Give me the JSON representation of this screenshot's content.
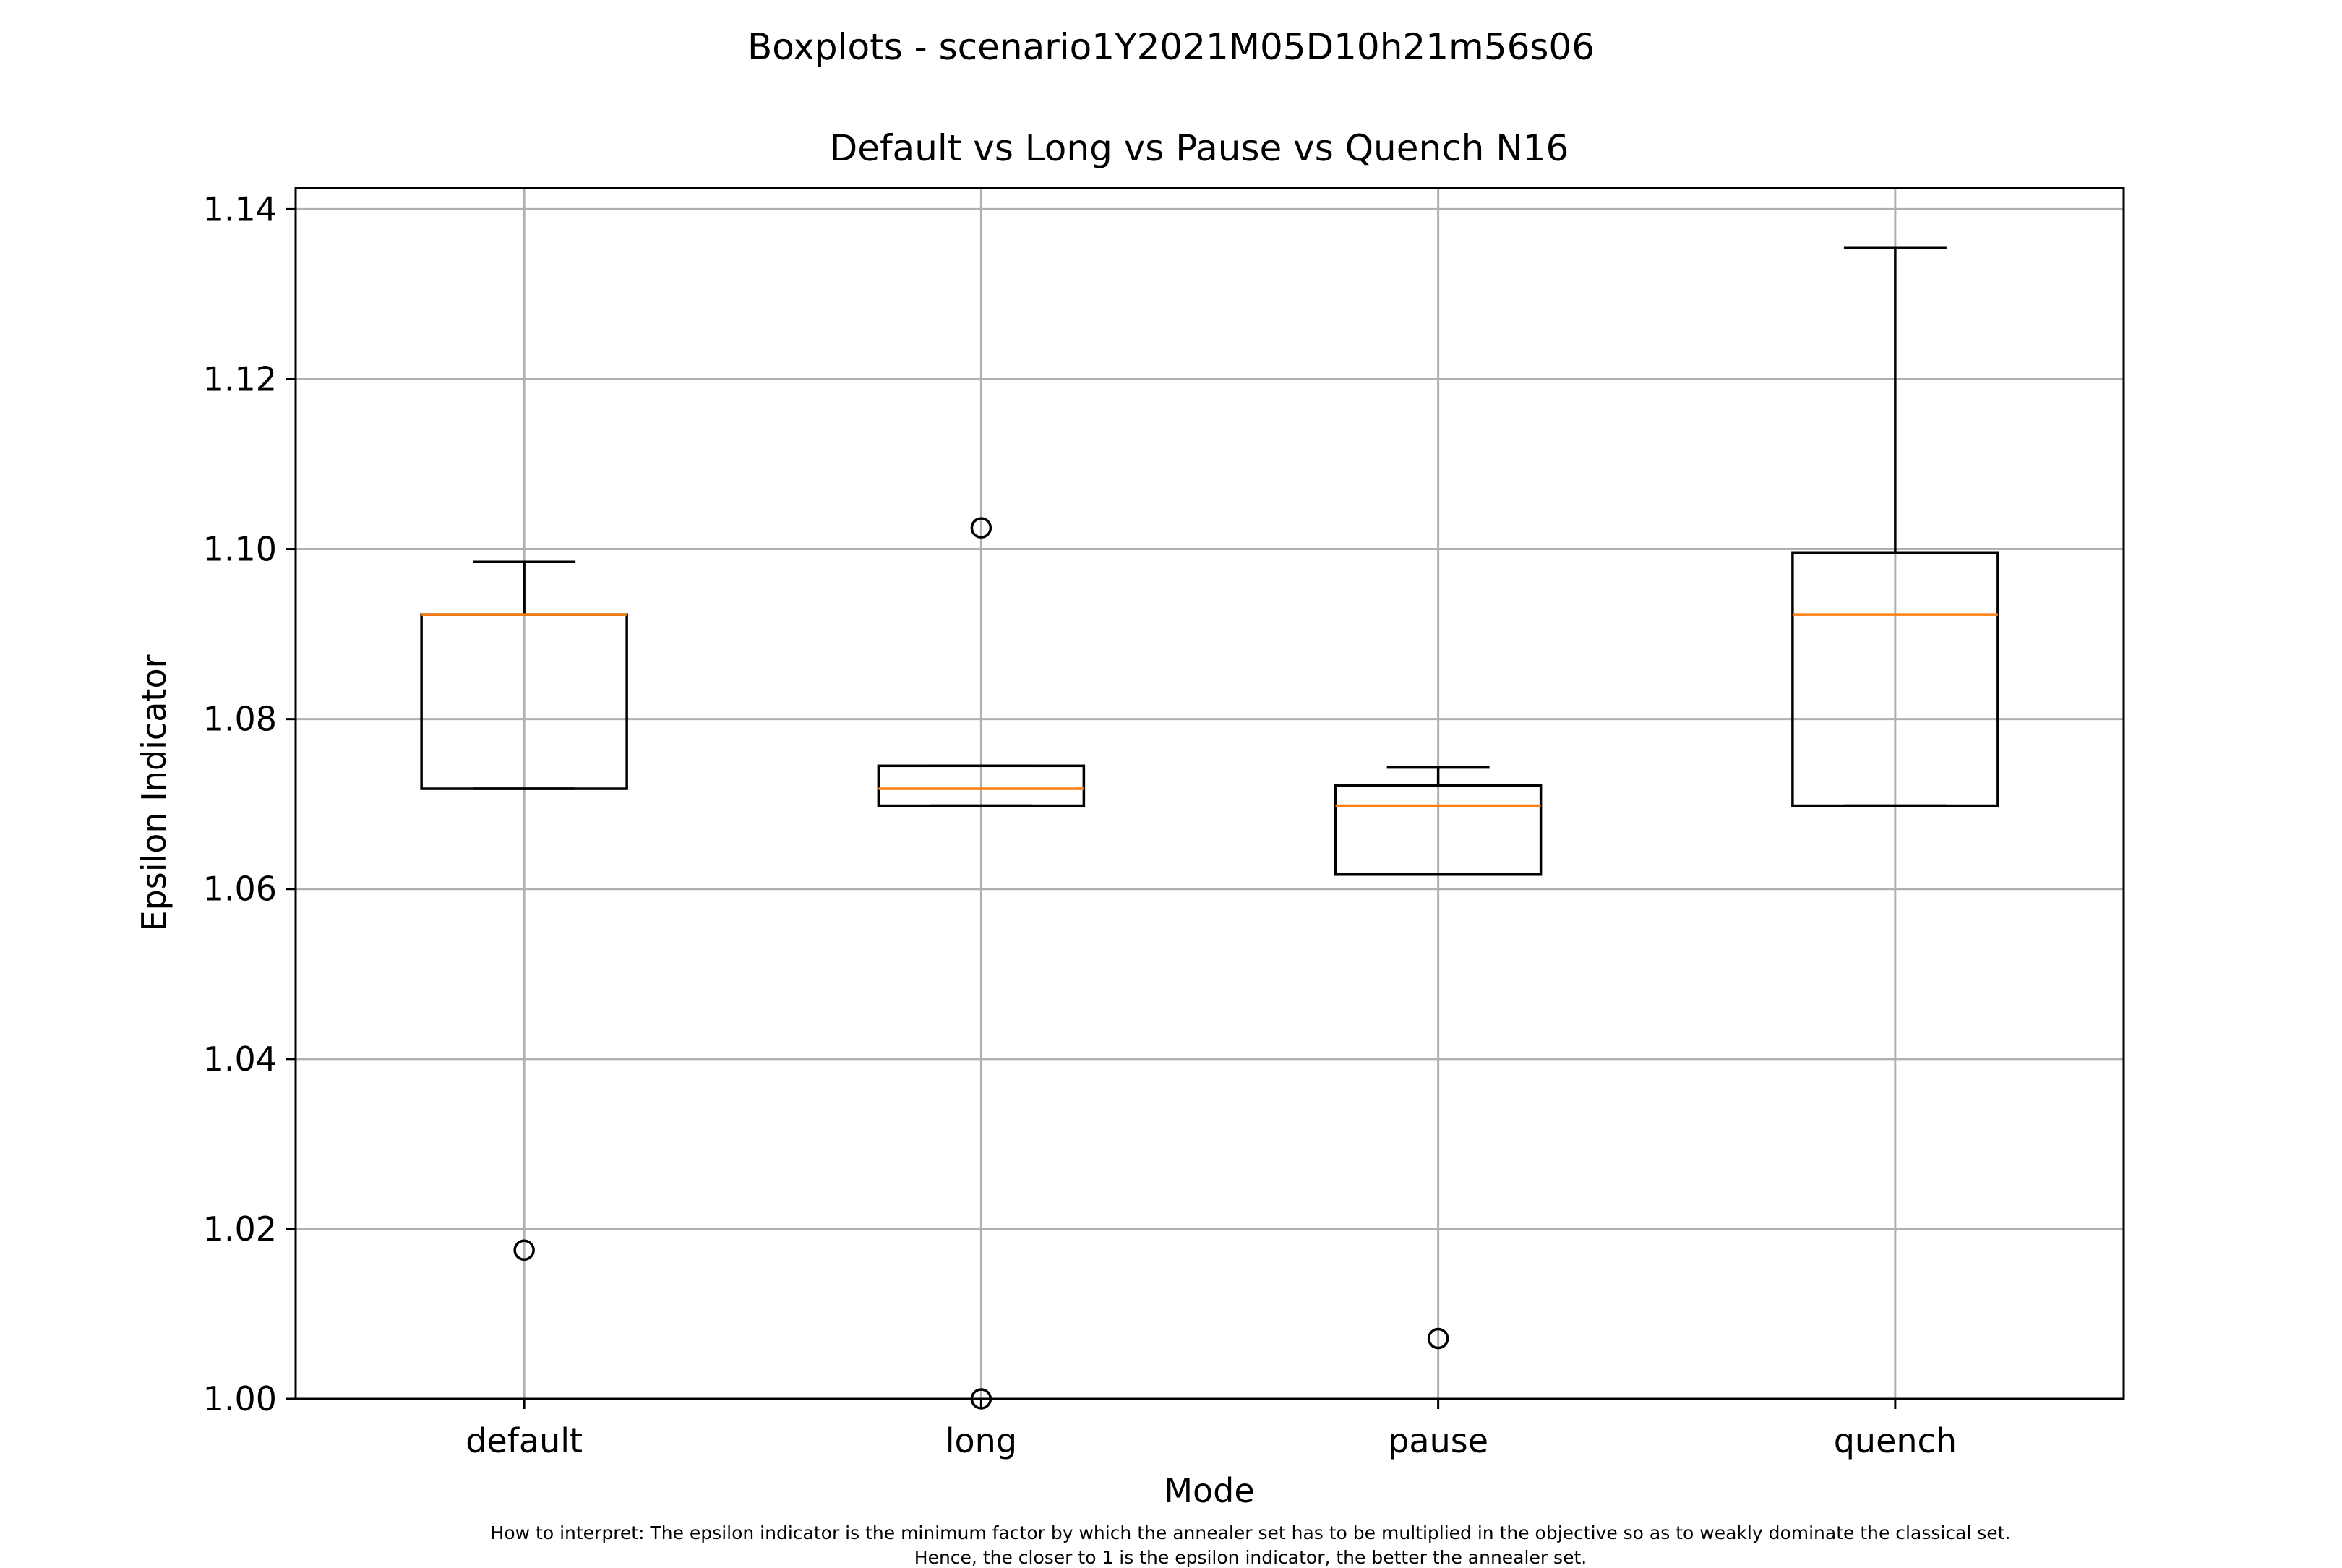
{
  "chart_data": {
    "type": "boxplot",
    "suptitle": "Boxplots - scenario1Y2021M05D10h21m56s06",
    "title": "Default vs Long vs Pause vs Quench N16",
    "xlabel": "Mode",
    "ylabel": "Epsilon Indicator",
    "ylim": [
      1.0,
      1.1425
    ],
    "yticks": [
      "1.00",
      "1.02",
      "1.04",
      "1.06",
      "1.08",
      "1.10",
      "1.12",
      "1.14"
    ],
    "grid": true,
    "categories": [
      "default",
      "long",
      "pause",
      "quench"
    ],
    "boxes": [
      {
        "category": "default",
        "whisker_low": 1.0718,
        "q1": 1.0718,
        "median": 1.0923,
        "q3": 1.0923,
        "whisker_high": 1.0985,
        "outliers": [
          1.0175
        ]
      },
      {
        "category": "long",
        "whisker_low": 1.0698,
        "q1": 1.0698,
        "median": 1.0718,
        "q3": 1.0745,
        "whisker_high": 1.0745,
        "outliers": [
          1.1025,
          1.0
        ]
      },
      {
        "category": "pause",
        "whisker_low": 1.0617,
        "q1": 1.0617,
        "median": 1.0698,
        "q3": 1.0722,
        "whisker_high": 1.0743,
        "outliers": [
          1.0071
        ]
      },
      {
        "category": "quench",
        "whisker_low": 1.0698,
        "q1": 1.0698,
        "median": 1.0923,
        "q3": 1.0996,
        "whisker_high": 1.1355,
        "outliers": []
      }
    ],
    "colors": {
      "box": "#000000",
      "median": "#ff7f0e",
      "grid": "#b0b0b0"
    }
  },
  "footnote": {
    "line1": "How to interpret: The epsilon indicator is the minimum factor by which the annealer set has to be multiplied in the objective so as to weakly dominate the classical set.",
    "line2": "Hence, the closer to 1 is the epsilon indicator, the better the annealer set."
  }
}
